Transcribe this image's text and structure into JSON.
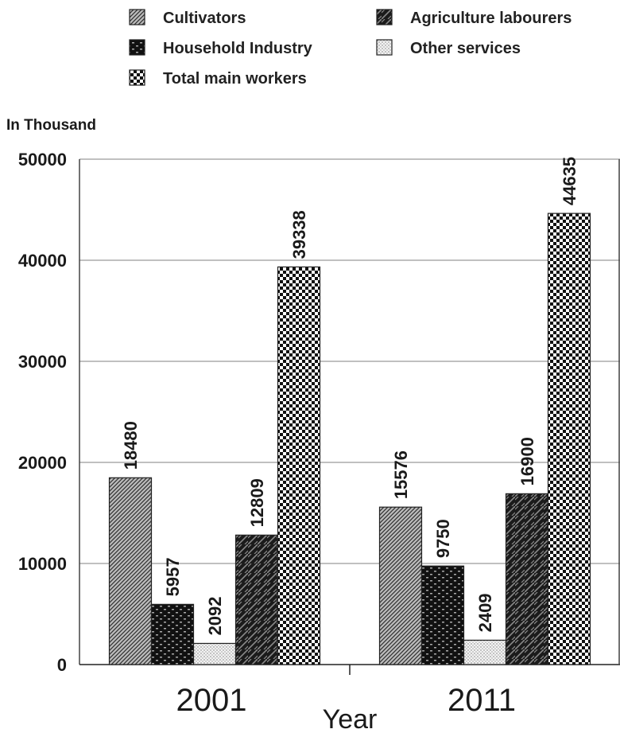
{
  "chart_data": {
    "type": "bar",
    "categories": [
      "2001",
      "2011"
    ],
    "series": [
      {
        "name": "Cultivators",
        "values": [
          18480,
          15576
        ],
        "pattern": "hatch"
      },
      {
        "name": "Household Industry",
        "values": [
          5957,
          9750
        ],
        "pattern": "bricks"
      },
      {
        "name": "Other services",
        "values": [
          2092,
          2409
        ],
        "pattern": "dots"
      },
      {
        "name": "Agriculture labourers",
        "values": [
          12809,
          16900
        ],
        "pattern": "weave"
      },
      {
        "name": "Total main workers",
        "values": [
          39338,
          44635
        ],
        "pattern": "checker"
      }
    ],
    "legend_order": [
      "Cultivators",
      "Agriculture labourers",
      "Household Industry",
      "Other services",
      "Total main workers"
    ],
    "ylabel": "In Thousand",
    "xlabel": "Year",
    "ylim": [
      0,
      50000
    ],
    "yticks": [
      0,
      10000,
      20000,
      30000,
      40000,
      50000
    ],
    "grid": true,
    "legend_position": "top"
  }
}
